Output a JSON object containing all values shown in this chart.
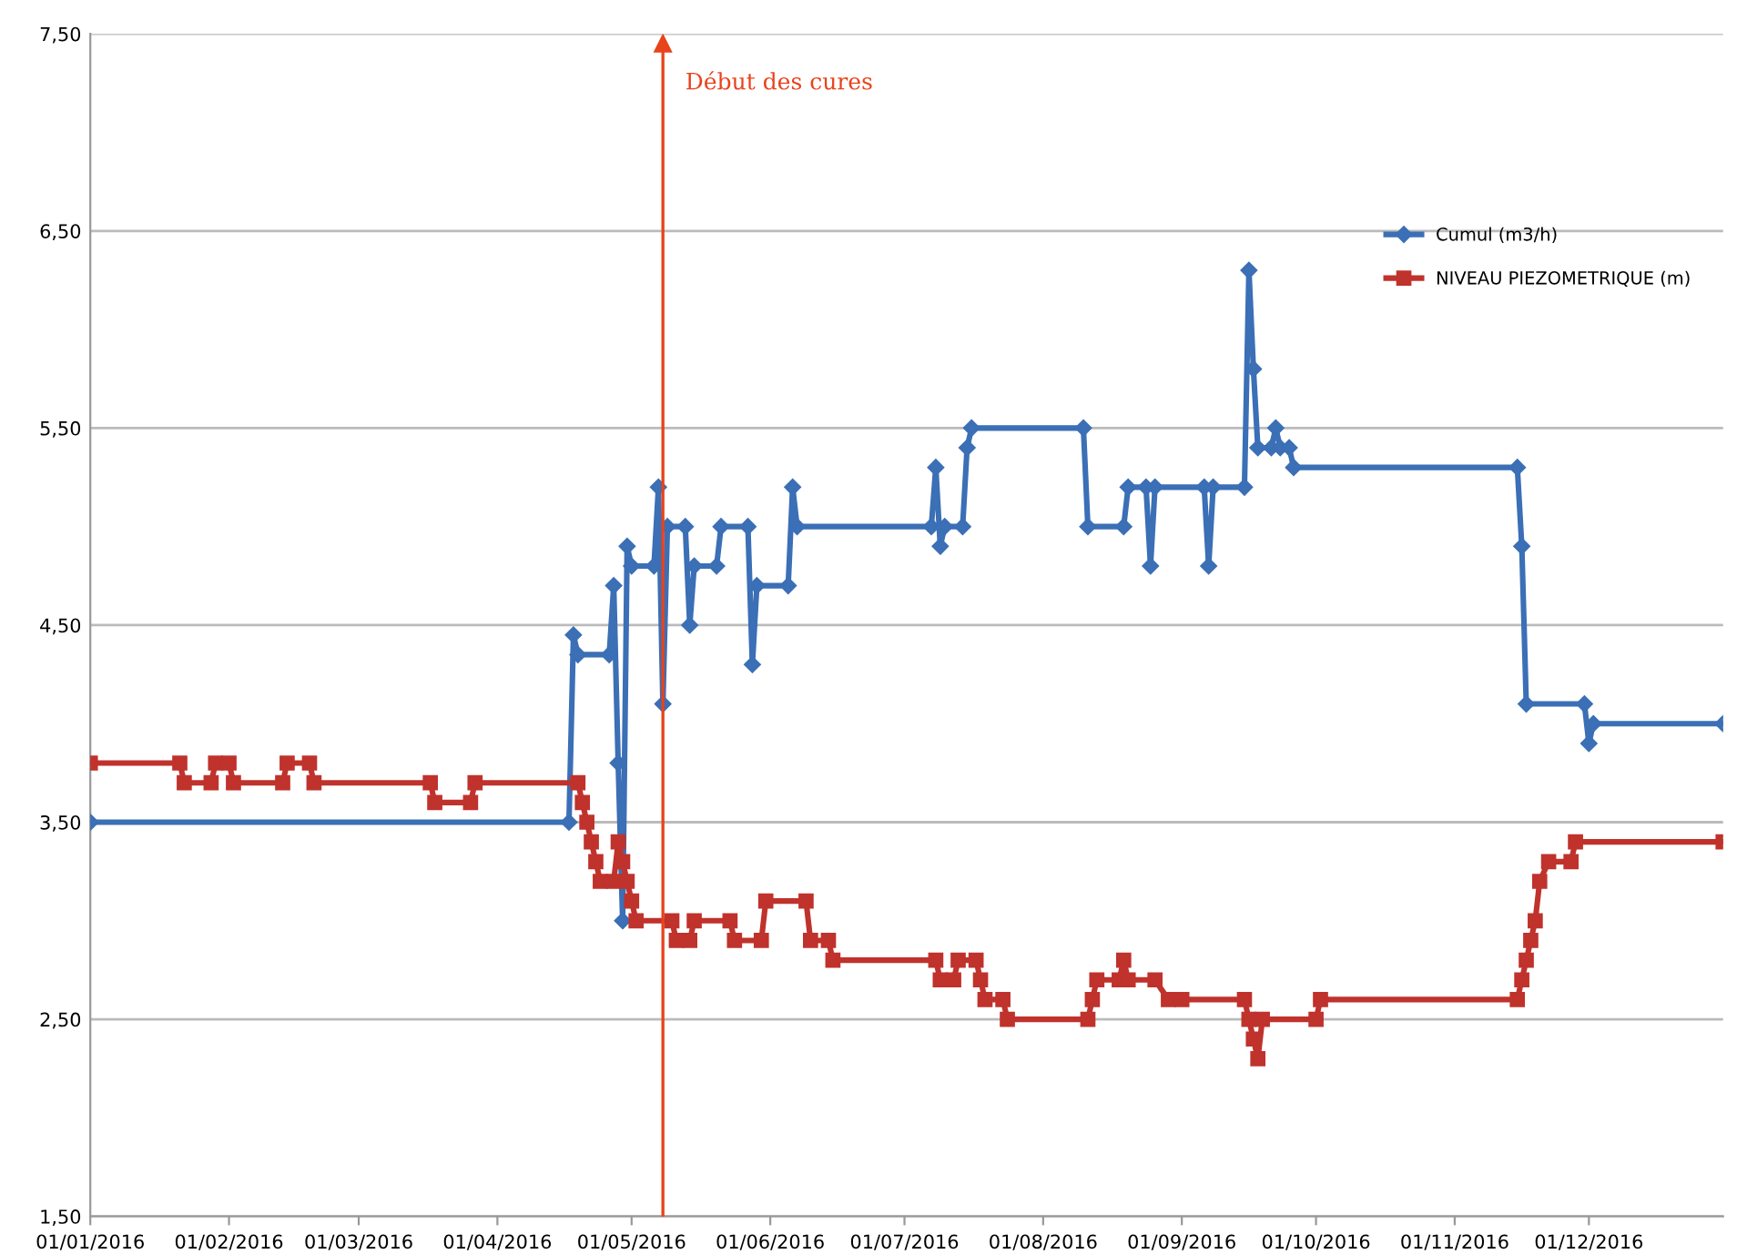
{
  "chart_data": {
    "type": "line",
    "series": [
      {
        "name": "Cumul (m3/h)",
        "color": "#3b6fb6",
        "marker": "diamond",
        "x": [
          "2016-01-01",
          "2016-04-17",
          "2016-04-18",
          "2016-04-19",
          "2016-04-26",
          "2016-04-27",
          "2016-04-28",
          "2016-04-29",
          "2016-04-30",
          "2016-05-01",
          "2016-05-06",
          "2016-05-07",
          "2016-05-08",
          "2016-05-09",
          "2016-05-13",
          "2016-05-14",
          "2016-05-15",
          "2016-05-20",
          "2016-05-21",
          "2016-05-27",
          "2016-05-28",
          "2016-05-29",
          "2016-06-05",
          "2016-06-06",
          "2016-06-07",
          "2016-07-07",
          "2016-07-08",
          "2016-07-09",
          "2016-07-10",
          "2016-07-14",
          "2016-07-15",
          "2016-07-16",
          "2016-08-10",
          "2016-08-11",
          "2016-08-19",
          "2016-08-20",
          "2016-08-24",
          "2016-08-25",
          "2016-08-26",
          "2016-09-06",
          "2016-09-07",
          "2016-09-08",
          "2016-09-15",
          "2016-09-16",
          "2016-09-17",
          "2016-09-18",
          "2016-09-21",
          "2016-09-22",
          "2016-09-23",
          "2016-09-25",
          "2016-09-26",
          "2016-11-15",
          "2016-11-16",
          "2016-11-17",
          "2016-11-30",
          "2016-12-01",
          "2016-12-02",
          "2016-12-31"
        ],
        "values": [
          3.5,
          3.5,
          4.45,
          4.35,
          4.35,
          4.7,
          3.8,
          3.0,
          4.9,
          4.8,
          4.8,
          5.2,
          4.1,
          5.0,
          5.0,
          4.5,
          4.8,
          4.8,
          5.0,
          5.0,
          4.3,
          4.7,
          4.7,
          5.2,
          5.0,
          5.0,
          5.3,
          4.9,
          5.0,
          5.0,
          5.4,
          5.5,
          5.5,
          5.0,
          5.0,
          5.2,
          5.2,
          4.8,
          5.2,
          5.2,
          4.8,
          5.2,
          5.2,
          6.3,
          5.8,
          5.4,
          5.4,
          5.5,
          5.4,
          5.4,
          5.3,
          5.3,
          4.9,
          4.1,
          4.1,
          3.9,
          4.0,
          4.0
        ]
      },
      {
        "name": "NIVEAU PIEZOMETRIQUE (m)",
        "color": "#c0322c",
        "marker": "square",
        "x": [
          "2016-01-01",
          "2016-01-21",
          "2016-01-22",
          "2016-01-28",
          "2016-01-29",
          "2016-02-01",
          "2016-02-02",
          "2016-02-13",
          "2016-02-14",
          "2016-02-19",
          "2016-02-20",
          "2016-03-17",
          "2016-03-18",
          "2016-03-26",
          "2016-03-27",
          "2016-04-19",
          "2016-04-20",
          "2016-04-21",
          "2016-04-22",
          "2016-04-23",
          "2016-04-24",
          "2016-04-27",
          "2016-04-28",
          "2016-04-29",
          "2016-04-30",
          "2016-05-01",
          "2016-05-02",
          "2016-05-10",
          "2016-05-11",
          "2016-05-14",
          "2016-05-15",
          "2016-05-23",
          "2016-05-24",
          "2016-05-30",
          "2016-05-31",
          "2016-06-09",
          "2016-06-10",
          "2016-06-14",
          "2016-06-15",
          "2016-07-08",
          "2016-07-09",
          "2016-07-12",
          "2016-07-13",
          "2016-07-17",
          "2016-07-18",
          "2016-07-19",
          "2016-07-23",
          "2016-07-24",
          "2016-08-11",
          "2016-08-12",
          "2016-08-13",
          "2016-08-18",
          "2016-08-19",
          "2016-08-20",
          "2016-08-26",
          "2016-08-29",
          "2016-09-01",
          "2016-09-15",
          "2016-09-16",
          "2016-09-17",
          "2016-09-18",
          "2016-09-19",
          "2016-10-01",
          "2016-10-02",
          "2016-11-15",
          "2016-11-16",
          "2016-11-17",
          "2016-11-18",
          "2016-11-19",
          "2016-11-20",
          "2016-11-22",
          "2016-11-27",
          "2016-11-28",
          "2016-12-31"
        ],
        "values": [
          3.8,
          3.8,
          3.7,
          3.7,
          3.8,
          3.8,
          3.7,
          3.7,
          3.8,
          3.8,
          3.7,
          3.7,
          3.6,
          3.6,
          3.7,
          3.7,
          3.6,
          3.5,
          3.4,
          3.3,
          3.2,
          3.2,
          3.4,
          3.3,
          3.2,
          3.1,
          3.0,
          3.0,
          2.9,
          2.9,
          3.0,
          3.0,
          2.9,
          2.9,
          3.1,
          3.1,
          2.9,
          2.9,
          2.8,
          2.8,
          2.7,
          2.7,
          2.8,
          2.8,
          2.7,
          2.6,
          2.6,
          2.5,
          2.5,
          2.6,
          2.7,
          2.7,
          2.8,
          2.7,
          2.7,
          2.6,
          2.6,
          2.6,
          2.5,
          2.4,
          2.3,
          2.5,
          2.5,
          2.6,
          2.6,
          2.7,
          2.8,
          2.9,
          3.0,
          3.2,
          3.3,
          3.3,
          3.4,
          3.4
        ]
      }
    ],
    "xlim": [
      "2016-01-01",
      "2016-12-31"
    ],
    "xticks": [
      {
        "value": "2016-01-01",
        "label": "01/01/2016"
      },
      {
        "value": "2016-02-01",
        "label": "01/02/2016"
      },
      {
        "value": "2016-03-01",
        "label": "01/03/2016"
      },
      {
        "value": "2016-04-01",
        "label": "01/04/2016"
      },
      {
        "value": "2016-05-01",
        "label": "01/05/2016"
      },
      {
        "value": "2016-06-01",
        "label": "01/06/2016"
      },
      {
        "value": "2016-07-01",
        "label": "01/07/2016"
      },
      {
        "value": "2016-08-01",
        "label": "01/08/2016"
      },
      {
        "value": "2016-09-01",
        "label": "01/09/2016"
      },
      {
        "value": "2016-10-01",
        "label": "01/10/2016"
      },
      {
        "value": "2016-11-01",
        "label": "01/11/2016"
      },
      {
        "value": "2016-12-01",
        "label": "01/12/2016"
      }
    ],
    "ylim": [
      1.5,
      7.5
    ],
    "yticks": [
      {
        "value": 1.5,
        "label": "1,50"
      },
      {
        "value": 2.5,
        "label": "2,50"
      },
      {
        "value": 3.5,
        "label": "3,50"
      },
      {
        "value": 4.5,
        "label": "4,50"
      },
      {
        "value": 5.5,
        "label": "5,50"
      },
      {
        "value": 6.5,
        "label": "6,50"
      },
      {
        "value": 7.5,
        "label": "7,50"
      }
    ],
    "grid": "y",
    "legend": "top right",
    "line_style": "solid",
    "ref_lines": [
      {
        "axis": "x",
        "value": "2016-05-08",
        "label": "Début des cures",
        "color": "#e8431c"
      }
    ]
  }
}
